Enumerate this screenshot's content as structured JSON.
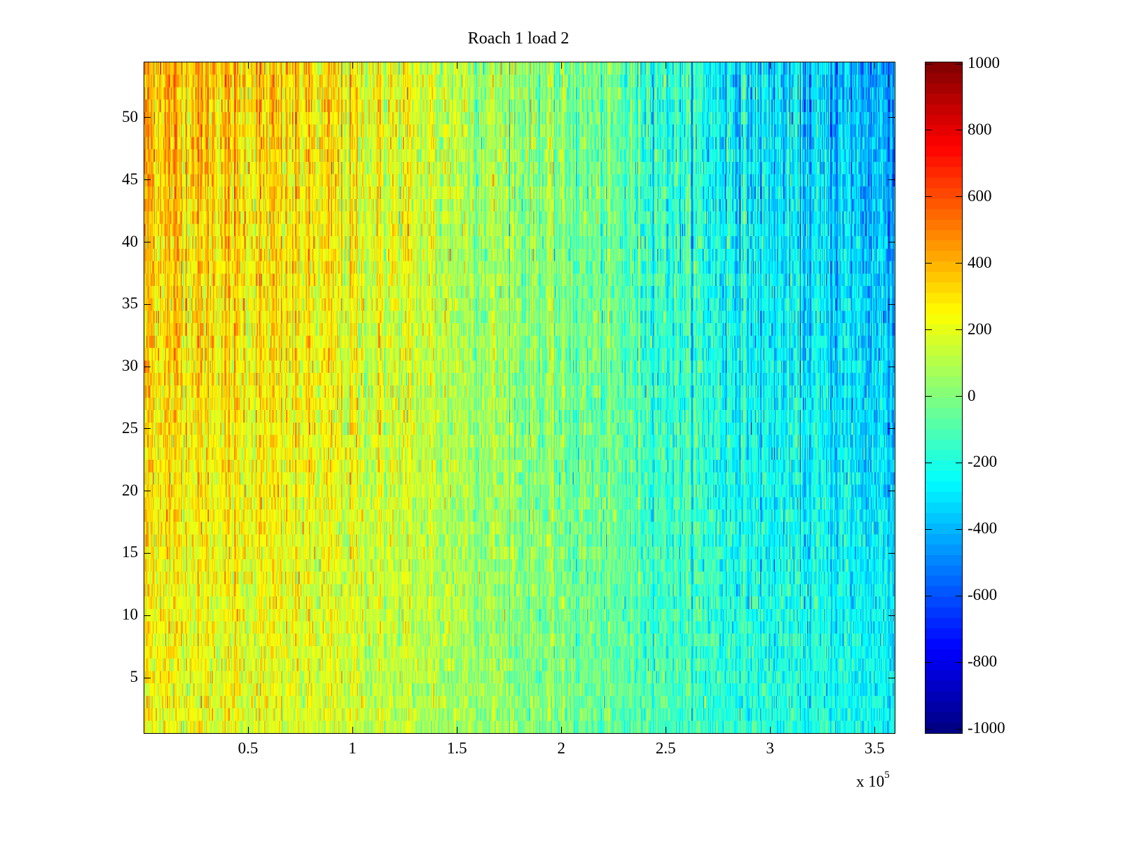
{
  "chart_data": {
    "type": "heatmap",
    "title": "Roach 1 load 2",
    "xlabel": "",
    "ylabel": "",
    "x_multiplier_label": "x 10",
    "x_multiplier_exponent": "5",
    "xlim": [
      0,
      3.6
    ],
    "ylim": [
      0.5,
      54.5
    ],
    "rows": 54,
    "x_ticks": [
      0.5,
      1,
      1.5,
      2,
      2.5,
      3,
      3.5
    ],
    "x_tick_labels": [
      "0.5",
      "1",
      "1.5",
      "2",
      "2.5",
      "3",
      "3.5"
    ],
    "y_ticks": [
      5,
      10,
      15,
      20,
      25,
      30,
      35,
      40,
      45,
      50
    ],
    "y_tick_labels": [
      "5",
      "10",
      "15",
      "20",
      "25",
      "30",
      "35",
      "40",
      "45",
      "50"
    ],
    "colormap": "jet",
    "clim": [
      -1000,
      1000
    ],
    "colorbar_ticks": [
      1000,
      800,
      600,
      400,
      200,
      0,
      -200,
      -400,
      -600,
      -800,
      -1000
    ],
    "colorbar_tick_labels": [
      "1000",
      "800",
      "600",
      "400",
      "200",
      "0",
      "-200",
      "-400",
      "-600",
      "-800",
      "-1000"
    ],
    "approx_column_mean_profile": {
      "x": [
        0,
        0.5,
        1,
        1.5,
        2,
        2.5,
        3,
        3.6
      ],
      "mean_top_rows": [
        420,
        330,
        250,
        130,
        0,
        -150,
        -330,
        -420
      ],
      "mean_bottom_rows": [
        230,
        200,
        150,
        80,
        -20,
        -110,
        -190,
        -230
      ]
    },
    "noise_std_approx": 120
  }
}
